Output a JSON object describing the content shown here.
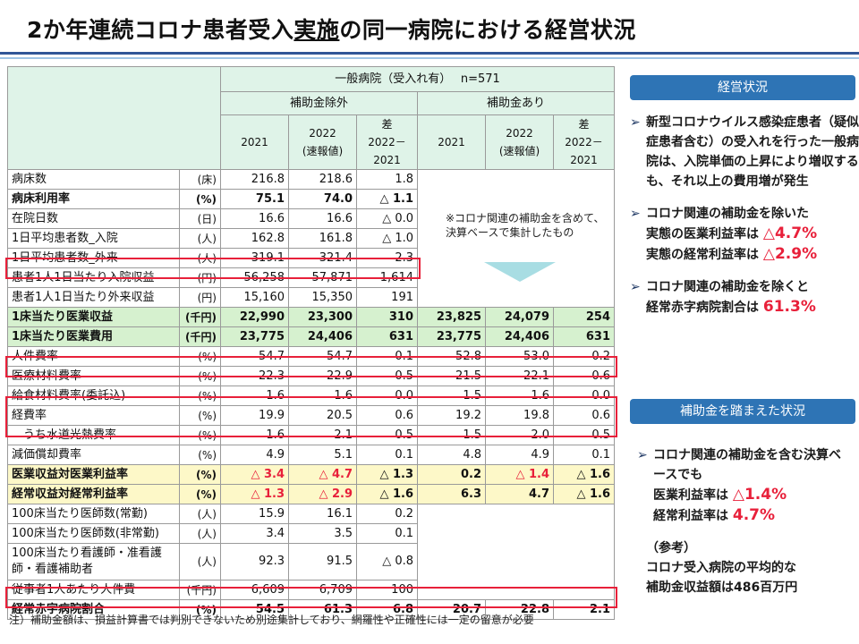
{
  "title": {
    "part1": "2か年連続コロナ患者受入",
    "part2": "実施",
    "part3": "の同一病院における経営状況"
  },
  "table": {
    "header_top": "一般病院（受入れ有）　 n=571",
    "group_excl": "補助金除外",
    "group_incl": "補助金あり",
    "cols": [
      "2021",
      "2022\n(速報値)",
      "差\n2022－\n2021",
      "2021",
      "2022\n(速報値)",
      "差\n2022－\n2021"
    ],
    "rows": [
      {
        "label": "病床数",
        "unit": "(床)",
        "v": [
          "216.8",
          "218.6",
          "1.8"
        ]
      },
      {
        "label": "病床利用率",
        "unit": "(%)",
        "v": [
          "75.1",
          "74.0",
          "△ 1.1"
        ],
        "bold": true
      },
      {
        "label": "在院日数",
        "unit": "(日)",
        "v": [
          "16.6",
          "16.6",
          "△ 0.0"
        ]
      },
      {
        "label": "1日平均患者数_入院",
        "unit": "(人)",
        "v": [
          "162.8",
          "161.8",
          "△ 1.0"
        ]
      },
      {
        "label": "1日平均患者数_外来",
        "unit": "(人)",
        "v": [
          "319.1",
          "321.4",
          "2.3"
        ]
      },
      {
        "label": "患者1人1日当たり入院収益",
        "unit": "(円)",
        "v": [
          "56,258",
          "57,871",
          "1,614"
        ]
      },
      {
        "label": "患者1人1日当たり外来収益",
        "unit": "(円)",
        "v": [
          "15,160",
          "15,350",
          "191"
        ]
      },
      {
        "label": "1床当たり医業収益",
        "unit": "(千円)",
        "v": [
          "22,990",
          "23,300",
          "310",
          "23,825",
          "24,079",
          "254"
        ],
        "style": "g"
      },
      {
        "label": "1床当たり医業費用",
        "unit": "(千円)",
        "v": [
          "23,775",
          "24,406",
          "631",
          "23,775",
          "24,406",
          "631"
        ],
        "style": "g"
      },
      {
        "label": "人件費率",
        "unit": "(%)",
        "v": [
          "54.7",
          "54.7",
          "0.1",
          "52.8",
          "53.0",
          "0.2"
        ]
      },
      {
        "label": "医療材料費率",
        "unit": "(%)",
        "v": [
          "22.3",
          "22.9",
          "0.5",
          "21.5",
          "22.1",
          "0.6"
        ]
      },
      {
        "label": "給食材料費率(委託込)",
        "unit": "(%)",
        "v": [
          "1.6",
          "1.6",
          "0.0",
          "1.5",
          "1.6",
          "0.0"
        ]
      },
      {
        "label": "経費率",
        "unit": "(%)",
        "v": [
          "19.9",
          "20.5",
          "0.6",
          "19.2",
          "19.8",
          "0.6"
        ]
      },
      {
        "label": "　うち水道光熱費率",
        "unit": "(%)",
        "v": [
          "1.6",
          "2.1",
          "0.5",
          "1.5",
          "2.0",
          "0.5"
        ]
      },
      {
        "label": "減価償却費率",
        "unit": "(%)",
        "v": [
          "4.9",
          "5.1",
          "0.1",
          "4.8",
          "4.9",
          "0.1"
        ]
      },
      {
        "label": "医業収益対医業利益率",
        "unit": "(%)",
        "v": [
          "△ 3.4",
          "△ 4.7",
          "△ 1.3",
          "0.2",
          "△ 1.4",
          "△ 1.6"
        ],
        "style": "y",
        "red": [
          0,
          1,
          4
        ]
      },
      {
        "label": "経常収益対経常利益率",
        "unit": "(%)",
        "v": [
          "△ 1.3",
          "△ 2.9",
          "△ 1.6",
          "6.3",
          "4.7",
          "△ 1.6"
        ],
        "style": "y",
        "red": [
          0,
          1
        ]
      },
      {
        "label": "100床当たり医師数(常勤)",
        "unit": "(人)",
        "v": [
          "15.9",
          "16.1",
          "0.2"
        ]
      },
      {
        "label": "100床当たり医師数(非常勤)",
        "unit": "(人)",
        "v": [
          "3.4",
          "3.5",
          "0.1"
        ]
      },
      {
        "label": "100床当たり看護師・准看護師・看護補助者",
        "unit": "(人)",
        "v": [
          "92.3",
          "91.5",
          "△ 0.8"
        ],
        "tall": true
      },
      {
        "label": "従事者1人あたり人件費",
        "unit": "(千円)",
        "v": [
          "6,609",
          "6,709",
          "100"
        ]
      },
      {
        "label": "経常赤字病院割合",
        "unit": "(%)",
        "v": [
          "54.5",
          "61.3",
          "6.8",
          "20.7",
          "22.8",
          "2.1"
        ],
        "bold": true
      }
    ],
    "mid_note": "※コロナ関連の補助金を含めて、決算ベースで集計したもの"
  },
  "footnote": "注）補助金額は、損益計算書では判別できないため別途集計しており、網羅性や正確性には一定の留意が必要",
  "side1": {
    "header": "経営状況",
    "b1": "新型コロナウイルス感染症患者（疑似症患者含む）の受入れを行った一般病院は、入院単価の上昇により増収するも、それ以上の費用増が発生",
    "b2_lead": "コロナ関連の補助金を除いた",
    "b2_l1": "実態の医業利益率は",
    "b2_v1": "△4.7%",
    "b2_l2": "実態の経常利益率は",
    "b2_v2": "△2.9%",
    "b3_lead": "コロナ関連の補助金を除くと",
    "b3_l": "経常赤字病院割合は",
    "b3_v": "61.3%"
  },
  "side2": {
    "header": "補助金を踏まえた状況",
    "b1_lead": "コロナ関連の補助金を含む決算ベースでも",
    "b1_l1": "医業利益率は",
    "b1_v1": "△1.4%",
    "b1_l2": "経常利益率は",
    "b1_v2": "4.7%",
    "ref_title": "（参考）",
    "ref_l1": "コロナ受入病院の平均的な",
    "ref_l2": "補助金収益額は486百万円"
  },
  "colors": {
    "accent": "#2e74b5",
    "header_bg": "#dff3e8",
    "green_row": "#d6f1cf",
    "yellow_row": "#fdf8c8",
    "red": "#e8203a"
  }
}
